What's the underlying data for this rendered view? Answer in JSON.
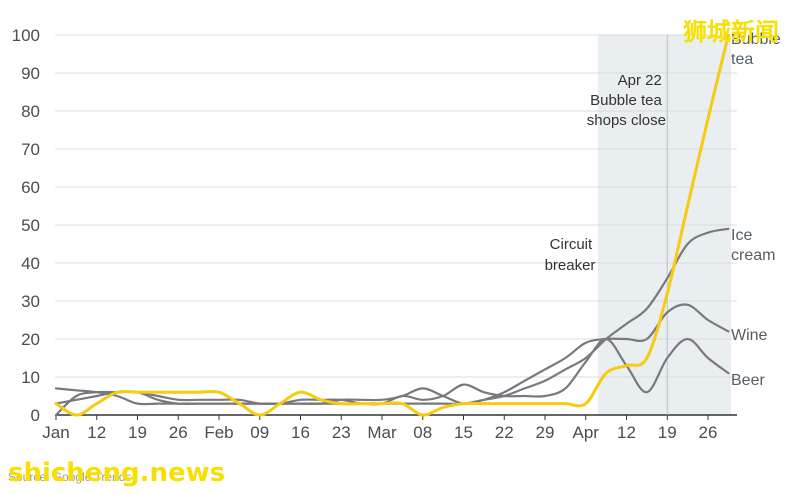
{
  "chart_data": {
    "type": "line",
    "title": "",
    "xlabel": "",
    "ylabel": "",
    "ylim": [
      0,
      100
    ],
    "y_ticks": [
      "0",
      "10",
      "20",
      "30",
      "40",
      "50",
      "60",
      "70",
      "80",
      "90",
      "100"
    ],
    "x_tick_labels": [
      "Jan",
      "12",
      "19",
      "26",
      "Feb",
      "09",
      "16",
      "23",
      "Mar",
      "08",
      "15",
      "22",
      "29",
      "Apr",
      "12",
      "19",
      "26"
    ],
    "shaded_region": [
      13.3,
      16.8
    ],
    "series": [
      {
        "name": "Bubble tea",
        "label_lines": [
          "Bubble",
          "tea"
        ],
        "color": "#f5cc10",
        "x": [
          0,
          0.5,
          1,
          1.5,
          2,
          2.5,
          3,
          3.5,
          4,
          4.5,
          5,
          5.5,
          6,
          6.5,
          7,
          7.5,
          8,
          8.5,
          9,
          9.5,
          10,
          10.5,
          11,
          11.5,
          12,
          12.5,
          13,
          13.5,
          14,
          14.5,
          15,
          15.5,
          16,
          16.5
        ],
        "y": [
          3,
          0,
          3,
          6,
          6,
          6,
          6,
          6,
          6,
          3,
          0,
          3,
          6,
          4,
          3,
          3,
          3,
          3,
          0,
          2,
          3,
          3,
          3,
          3,
          3,
          3,
          3,
          11,
          13,
          15,
          32,
          55,
          78,
          100
        ]
      },
      {
        "name": "Ice cream",
        "label_lines": [
          "Ice",
          "cream"
        ],
        "color": "#77797e",
        "x": [
          0,
          0.5,
          1,
          1.5,
          2,
          2.5,
          3,
          3.5,
          4,
          4.5,
          5,
          5.5,
          6,
          6.5,
          7,
          7.5,
          8,
          8.5,
          9,
          9.5,
          10,
          10.5,
          11,
          11.5,
          12,
          12.5,
          13,
          13.5,
          14,
          14.5,
          15,
          15.5,
          16,
          16.5
        ],
        "y": [
          3,
          4,
          5,
          6,
          6,
          5,
          4,
          4,
          4,
          4,
          3,
          3,
          3,
          3,
          3,
          3,
          3,
          3,
          3,
          3,
          3,
          4,
          5,
          7,
          9,
          12,
          15,
          20,
          24,
          28,
          36,
          45,
          48,
          49
        ]
      },
      {
        "name": "Wine",
        "label_lines": [
          "Wine"
        ],
        "color": "#77797e",
        "x": [
          0,
          0.5,
          1,
          1.5,
          2,
          2.5,
          3,
          3.5,
          4,
          4.5,
          5,
          5.5,
          6,
          6.5,
          7,
          7.5,
          8,
          8.5,
          9,
          9.5,
          10,
          10.5,
          11,
          11.5,
          12,
          12.5,
          13,
          13.5,
          14,
          14.5,
          15,
          15.5,
          16,
          16.5
        ],
        "y": [
          0,
          5,
          6,
          6,
          6,
          4,
          3,
          3,
          3,
          3,
          3,
          3,
          3,
          3,
          4,
          4,
          4,
          5,
          7,
          5,
          3,
          4,
          6,
          9,
          12,
          15,
          19,
          20,
          20,
          20,
          27,
          29,
          25,
          22
        ]
      },
      {
        "name": "Beer",
        "label_lines": [
          "Beer"
        ],
        "color": "#77797e",
        "x": [
          0,
          0.5,
          1,
          1.5,
          2,
          2.5,
          3,
          3.5,
          4,
          4.5,
          5,
          5.5,
          6,
          6.5,
          7,
          7.5,
          8,
          8.5,
          9,
          9.5,
          10,
          10.5,
          11,
          11.5,
          12,
          12.5,
          13,
          13.5,
          14,
          14.5,
          15,
          15.5,
          16,
          16.5
        ],
        "y": [
          7,
          6.5,
          6,
          5,
          3,
          3,
          3,
          3,
          3,
          3,
          3,
          3,
          4,
          4,
          4,
          3,
          3,
          5,
          4,
          5,
          8,
          6,
          5,
          5,
          5,
          7,
          14,
          20,
          13,
          6,
          15,
          20,
          15,
          11
        ]
      }
    ],
    "annotations": [
      {
        "name": "circuit-breaker",
        "lines": [
          "Circuit",
          "breaker"
        ]
      },
      {
        "name": "apr-22",
        "lines": [
          "Apr 22",
          "Bubble tea",
          "shops close"
        ]
      }
    ]
  },
  "source_text": "Source: Google Trends",
  "watermarks": {
    "site": "shicheng.news",
    "chinese": "狮城新闻"
  }
}
